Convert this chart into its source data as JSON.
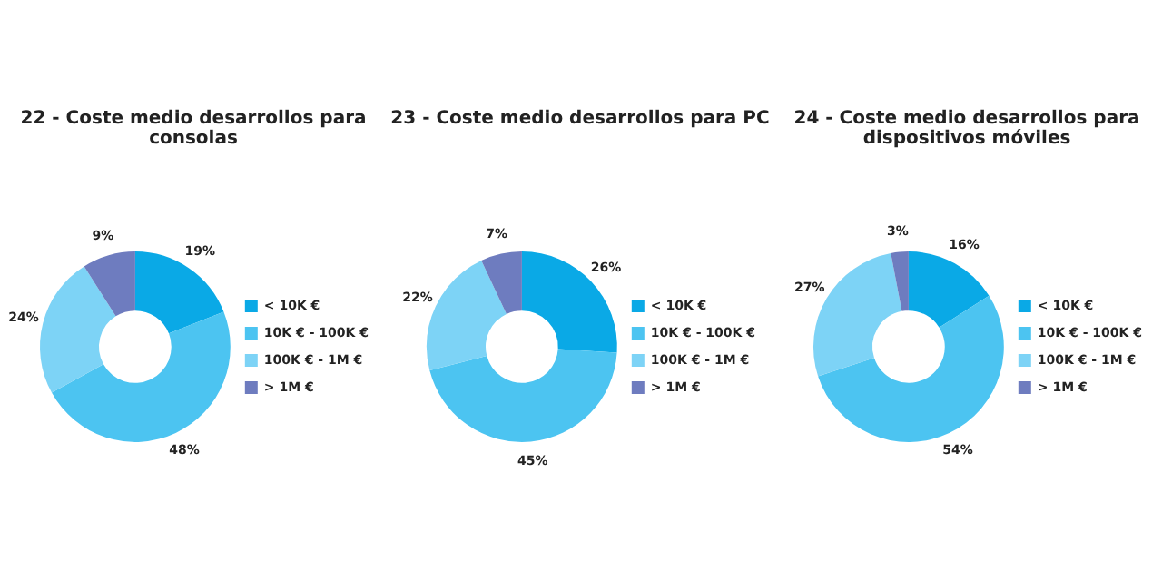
{
  "chart_data": [
    {
      "type": "donut",
      "title": "22 - Coste medio desarrollos para consolas",
      "categories": [
        "< 10K €",
        "10K € - 100K €",
        "100K € - 1M €",
        "> 1M €"
      ],
      "values": [
        19,
        48,
        24,
        9
      ],
      "value_labels": [
        "19%",
        "48%",
        "24%",
        "9%"
      ],
      "colors": [
        "#0aa9e6",
        "#4cc4f1",
        "#7dd3f6",
        "#6e7cbf"
      ],
      "legend": "right"
    },
    {
      "type": "donut",
      "title": "23 - Coste medio desarrollos para PC",
      "categories": [
        "< 10K €",
        "10K € - 100K €",
        "100K € - 1M €",
        "> 1M €"
      ],
      "values": [
        26,
        45,
        22,
        7
      ],
      "value_labels": [
        "26%",
        "45%",
        "22%",
        "7%"
      ],
      "colors": [
        "#0aa9e6",
        "#4cc4f1",
        "#7dd3f6",
        "#6e7cbf"
      ],
      "legend": "right"
    },
    {
      "type": "donut",
      "title": "24 - Coste medio desarrollos para dispositivos móviles",
      "categories": [
        "< 10K €",
        "10K € - 100K €",
        "100K € - 1M €",
        "> 1M €"
      ],
      "values": [
        16,
        54,
        27,
        3
      ],
      "value_labels": [
        "16%",
        "54%",
        "27%",
        "3%"
      ],
      "colors": [
        "#0aa9e6",
        "#4cc4f1",
        "#7dd3f6",
        "#6e7cbf"
      ],
      "legend": "right"
    }
  ]
}
